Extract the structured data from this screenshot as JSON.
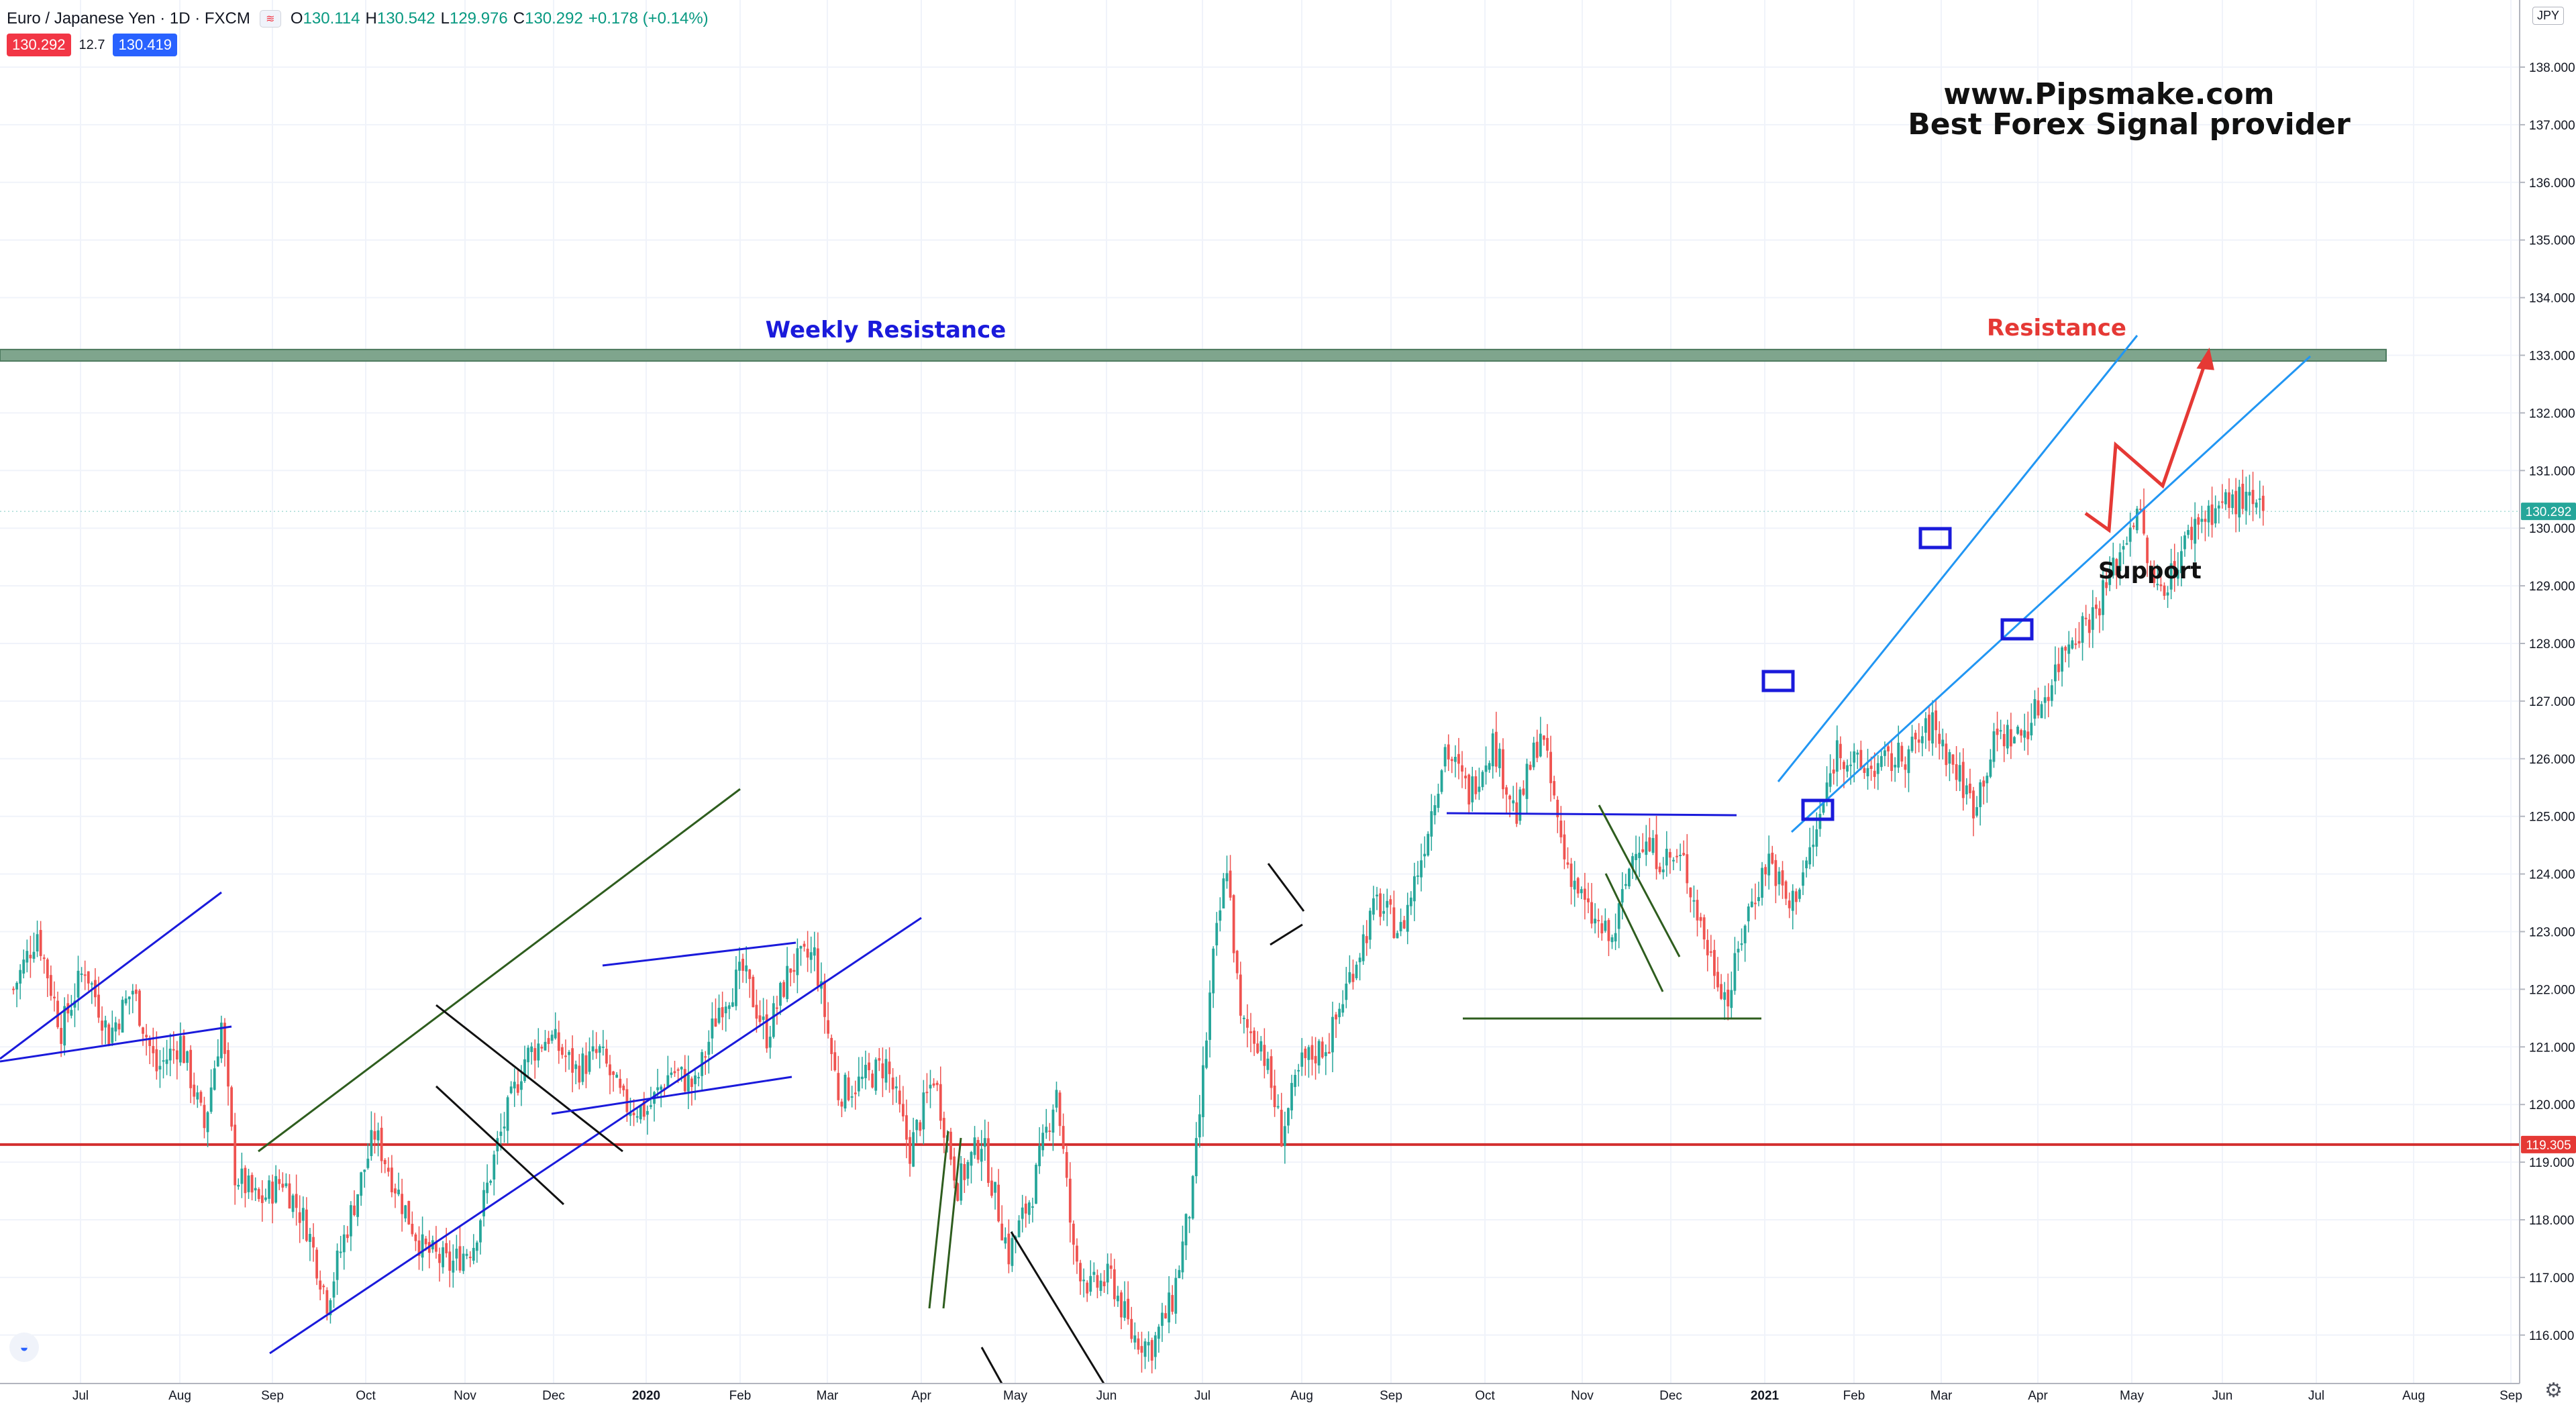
{
  "header": {
    "symbol": "Euro / Japanese Yen · 1D · FXCM",
    "ohlc": [
      {
        "label": "O",
        "value": "130.114"
      },
      {
        "label": "H",
        "value": "130.542"
      },
      {
        "label": "L",
        "value": "129.976"
      },
      {
        "label": "C",
        "value": "130.292"
      },
      {
        "label": "",
        "value": "+0.178 (+0.14%)"
      }
    ],
    "sell_price": "130.292",
    "spread": "12.7",
    "buy_price": "130.419",
    "currency": "JPY",
    "legend_icon": "chart-flag-icon"
  },
  "annotations": {
    "site": "www.Pipsmake.com",
    "tagline": "Best Forex Signal provider",
    "weekly_resistance": "Weekly Resistance",
    "resistance": "Resistance",
    "support": "Support"
  },
  "colors": {
    "up": "#26a69a",
    "down": "#ef5350",
    "weekly_line": "#d32f2f",
    "zone": "#7fa58d",
    "blue": "#1a1adb",
    "channel": "#2196f3",
    "green": "#2e5d1e",
    "arrow": "#e53935"
  },
  "chart_data": {
    "type": "candlestick",
    "symbol": "EURJPY",
    "timeframe": "1D",
    "ylim": [
      115.6,
      139.1
    ],
    "y_ticks": [
      "116.000",
      "117.000",
      "118.000",
      "119.000",
      "120.000",
      "121.000",
      "122.000",
      "123.000",
      "124.000",
      "125.000",
      "126.000",
      "127.000",
      "128.000",
      "129.000",
      "130.000",
      "131.000",
      "132.000",
      "133.000",
      "134.000",
      "135.000",
      "136.000",
      "137.000",
      "138.000"
    ],
    "x_ticks": [
      "Jul",
      "Aug",
      "Sep",
      "Oct",
      "Nov",
      "Dec",
      "2020",
      "Feb",
      "Mar",
      "Apr",
      "May",
      "Jun",
      "Jul",
      "Aug",
      "Sep",
      "Oct",
      "Nov",
      "Dec",
      "2021",
      "Feb",
      "Mar",
      "Apr",
      "May",
      "Jun",
      "Jul",
      "Aug",
      "Sep"
    ],
    "last_price": "130.292",
    "weekly_level": "119.305",
    "resistance_zone": [
      132.9,
      133.1
    ],
    "close_path": [
      [
        0,
        122.0
      ],
      [
        7,
        123.0
      ],
      [
        14,
        121.3
      ],
      [
        21,
        122.4
      ],
      [
        28,
        121.2
      ],
      [
        35,
        122.0
      ],
      [
        42,
        120.6
      ],
      [
        49,
        121.1
      ],
      [
        56,
        119.6
      ],
      [
        61,
        121.4
      ],
      [
        65,
        118.8
      ],
      [
        72,
        118.3
      ],
      [
        79,
        118.7
      ],
      [
        86,
        117.9
      ],
      [
        92,
        116.6
      ],
      [
        98,
        117.9
      ],
      [
        106,
        119.5
      ],
      [
        114,
        118.3
      ],
      [
        120,
        117.5
      ],
      [
        128,
        117.2
      ],
      [
        135,
        117.6
      ],
      [
        142,
        119.3
      ],
      [
        150,
        120.8
      ],
      [
        157,
        121.2
      ],
      [
        165,
        120.6
      ],
      [
        172,
        120.9
      ],
      [
        179,
        120.0
      ],
      [
        186,
        119.9
      ],
      [
        193,
        120.6
      ],
      [
        200,
        120.3
      ],
      [
        207,
        121.7
      ],
      [
        214,
        122.3
      ],
      [
        221,
        121.2
      ],
      [
        228,
        122.4
      ],
      [
        235,
        122.6
      ],
      [
        242,
        120.2
      ],
      [
        249,
        120.4
      ],
      [
        256,
        120.7
      ],
      [
        263,
        119.2
      ],
      [
        270,
        120.5
      ],
      [
        277,
        118.6
      ],
      [
        284,
        119.4
      ],
      [
        292,
        117.4
      ],
      [
        299,
        118.5
      ],
      [
        306,
        120.3
      ],
      [
        311,
        117.4
      ],
      [
        316,
        116.8
      ],
      [
        322,
        117.0
      ],
      [
        328,
        116.0
      ],
      [
        334,
        115.8
      ],
      [
        340,
        116.6
      ],
      [
        346,
        118.5
      ],
      [
        352,
        122.5
      ],
      [
        356,
        124.2
      ],
      [
        360,
        121.4
      ],
      [
        366,
        121.1
      ],
      [
        372,
        119.5
      ],
      [
        378,
        120.7
      ],
      [
        386,
        121.1
      ],
      [
        393,
        122.4
      ],
      [
        400,
        123.5
      ],
      [
        407,
        123.0
      ],
      [
        413,
        124.3
      ],
      [
        420,
        126.2
      ],
      [
        427,
        125.4
      ],
      [
        434,
        126.3
      ],
      [
        441,
        125.0
      ],
      [
        448,
        126.5
      ],
      [
        455,
        124.3
      ],
      [
        462,
        123.3
      ],
      [
        469,
        122.8
      ],
      [
        476,
        124.6
      ],
      [
        483,
        124.3
      ],
      [
        490,
        124.2
      ],
      [
        497,
        122.7
      ],
      [
        503,
        121.8
      ],
      [
        508,
        123.2
      ],
      [
        515,
        124.3
      ],
      [
        521,
        123.4
      ],
      [
        528,
        124.5
      ],
      [
        535,
        126.2
      ],
      [
        542,
        125.8
      ],
      [
        549,
        125.9
      ],
      [
        556,
        126.1
      ],
      [
        563,
        126.6
      ],
      [
        569,
        125.9
      ],
      [
        575,
        125.2
      ],
      [
        582,
        126.4
      ],
      [
        589,
        126.4
      ],
      [
        596,
        127.1
      ],
      [
        603,
        128.1
      ],
      [
        610,
        128.5
      ],
      [
        617,
        129.4
      ],
      [
        623,
        130.4
      ],
      [
        628,
        128.9
      ],
      [
        633,
        129.2
      ],
      [
        640,
        130.1
      ],
      [
        647,
        130.4
      ],
      [
        654,
        130.5
      ],
      [
        660,
        130.2
      ]
    ]
  }
}
